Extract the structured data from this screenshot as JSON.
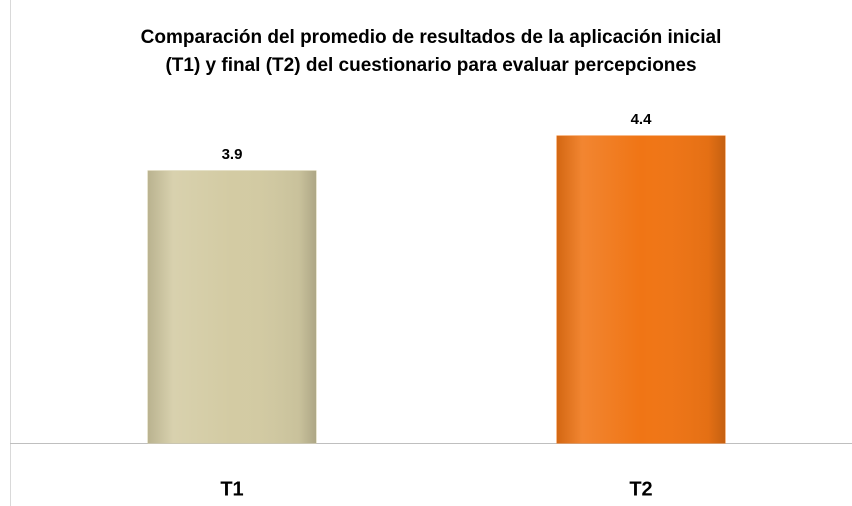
{
  "chart_data": {
    "type": "bar",
    "title": [
      "Comparación del promedio de resultados de la aplicación inicial",
      "(T1) y final (T2) del cuestionario para evaluar percepciones"
    ],
    "categories": [
      "T1",
      "T2"
    ],
    "values": [
      3.9,
      4.4
    ],
    "colors": [
      "#d3cba3",
      "#f07515"
    ]
  }
}
